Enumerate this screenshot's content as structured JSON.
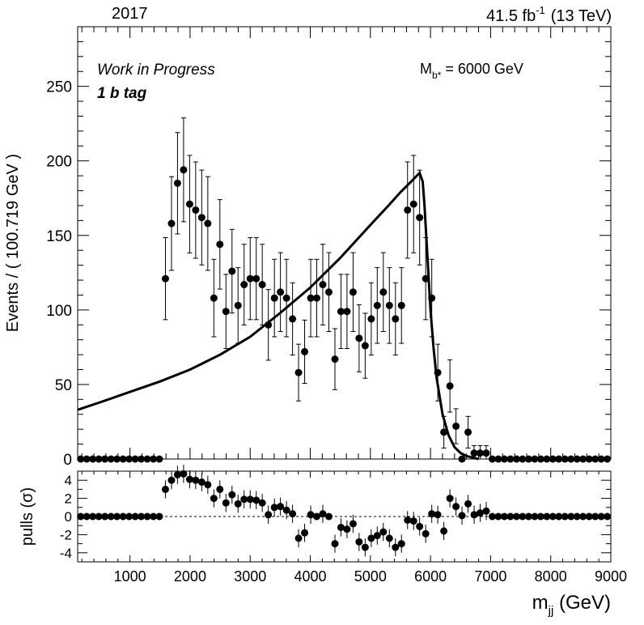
{
  "header": {
    "year": "2017",
    "lumi_prefix": "41.5 fb",
    "lumi_exp": "-1",
    "energy": "(13 TeV)"
  },
  "annotations": {
    "work_in_progress": "Work in Progress",
    "tag": "1 b tag",
    "mass_prefix": "M",
    "mass_sub": "b*",
    "mass_value": " = 6000 GeV"
  },
  "chart_data": {
    "type": "scatter",
    "x_label_main": "m",
    "x_label_sub": "jj",
    "x_label_unit": " (GeV)",
    "top_panel": {
      "ylabel": "Events / ( 100.719 GeV )",
      "ylim": [
        0,
        290
      ],
      "yticks": [
        0,
        50,
        100,
        150,
        200,
        250
      ]
    },
    "bottom_panel": {
      "ylabel": "pulls (σ)",
      "ylim": [
        -5,
        5
      ],
      "yticks": [
        -4,
        -2,
        0,
        2,
        4
      ],
      "reference_line": 0
    },
    "xlim": [
      130,
      9000
    ],
    "xticks": [
      1000,
      2000,
      3000,
      4000,
      5000,
      6000,
      7000,
      8000,
      9000
    ],
    "bin_width": 100.719,
    "series": [
      {
        "kind": "data_points",
        "x": [
          180,
          281,
          382,
          482,
          583,
          684,
          784,
          885,
          986,
          1087,
          1187,
          1288,
          1389,
          1489,
          1590,
          1691,
          1791,
          1892,
          1993,
          2093,
          2194,
          2295,
          2396,
          2496,
          2597,
          2698,
          2798,
          2899,
          3000,
          3101,
          3201,
          3302,
          3403,
          3503,
          3604,
          3705,
          3805,
          3906,
          4007,
          4107,
          4208,
          4309,
          4410,
          4510,
          4611,
          4712,
          4812,
          4913,
          5014,
          5114,
          5215,
          5316,
          5417,
          5517,
          5618,
          5719,
          5819,
          5920,
          6021,
          6121,
          6222,
          6323,
          6424,
          6524,
          6625,
          6726,
          6826,
          6927,
          7028,
          7128,
          7229,
          7330,
          7431,
          7531,
          7632,
          7733,
          7833,
          7934,
          8035,
          8135,
          8236,
          8337,
          8438,
          8538,
          8639,
          8740,
          8840,
          8941
        ],
        "y": [
          0,
          0,
          0,
          0,
          0,
          0,
          0,
          0,
          0,
          0,
          0,
          0,
          0,
          0,
          121,
          158,
          185,
          194,
          171,
          167,
          162,
          158,
          108,
          144,
          99,
          126,
          103,
          117,
          121,
          121,
          117,
          90,
          108,
          112,
          108,
          94,
          58,
          72,
          108,
          108,
          117,
          112,
          67,
          99,
          99,
          112,
          81,
          76,
          94,
          103,
          112,
          103,
          94,
          103,
          167,
          171,
          162,
          121,
          108,
          58,
          18,
          49,
          22,
          0,
          18,
          4,
          4,
          4,
          0,
          0,
          0,
          0,
          0,
          0,
          0,
          0,
          0,
          0,
          0,
          0,
          0,
          0,
          0,
          0,
          0,
          0,
          0,
          0
        ],
        "pulls": [
          0,
          0,
          0,
          0,
          0,
          0,
          0,
          0,
          0,
          0,
          0,
          0,
          0,
          0,
          3.0,
          4.0,
          4.6,
          4.7,
          4.1,
          4.0,
          3.8,
          3.5,
          2.0,
          3.0,
          1.5,
          2.4,
          1.4,
          1.9,
          1.9,
          1.8,
          1.5,
          0.2,
          1.0,
          1.1,
          0.7,
          0.3,
          -2.4,
          -1.8,
          0.2,
          0.0,
          0.3,
          0.0,
          -3.0,
          -1.2,
          -1.4,
          -0.8,
          -2.8,
          -3.4,
          -2.4,
          -2.1,
          -1.7,
          -2.4,
          -3.4,
          -3.0,
          -0.4,
          -0.5,
          -1.1,
          -1.9,
          0.3,
          0.2,
          -1.6,
          2.0,
          1.1,
          0.1,
          1.4,
          0.2,
          0.4,
          0.6,
          0,
          0,
          0,
          0,
          0,
          0,
          0,
          0,
          0,
          0,
          0,
          0,
          0,
          0,
          0,
          0,
          0,
          0,
          0,
          0
        ]
      },
      {
        "kind": "signal_curve",
        "x": [
          130,
          500,
          1000,
          1500,
          2000,
          2500,
          3000,
          3500,
          4000,
          4500,
          5000,
          5300,
          5500,
          5700,
          5820,
          5870,
          5900,
          5950,
          6000,
          6050,
          6100,
          6200,
          6300,
          6400,
          6500,
          6600,
          6700,
          6800
        ],
        "y": [
          33,
          38,
          45,
          52,
          60,
          70,
          82,
          98,
          115,
          135,
          157,
          170,
          179,
          187,
          192,
          186,
          170,
          135,
          100,
          75,
          55,
          30,
          16,
          8,
          4,
          2,
          1,
          0
        ]
      }
    ]
  }
}
